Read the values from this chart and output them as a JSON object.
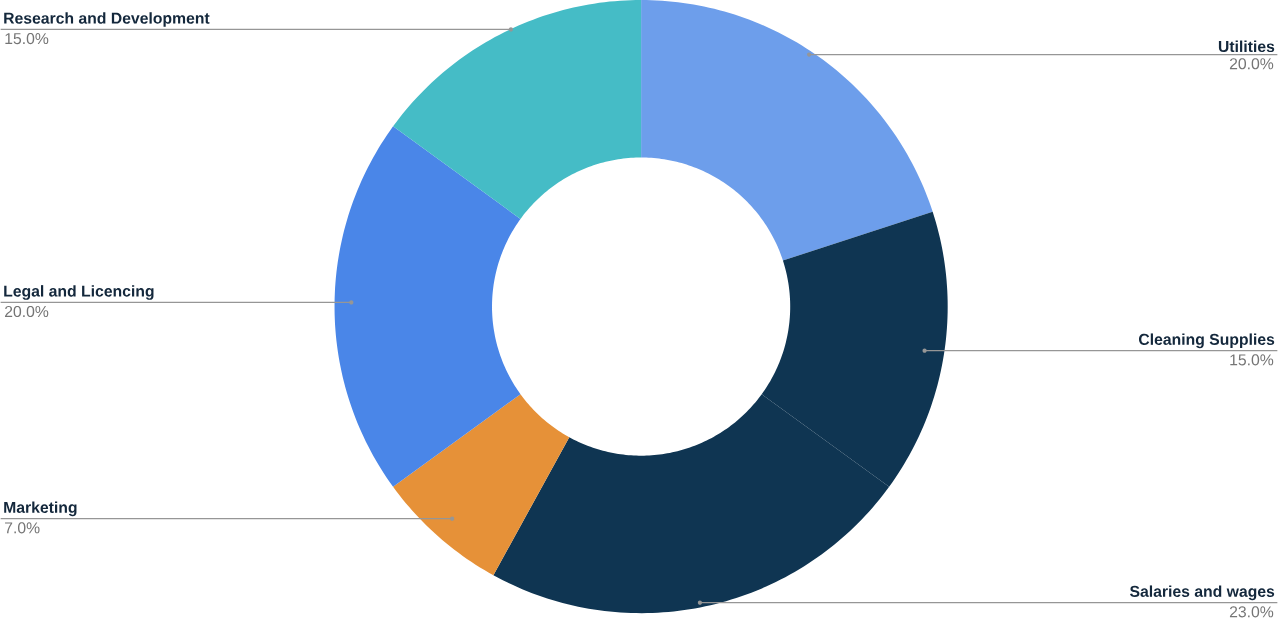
{
  "chart_data": {
    "type": "donut",
    "categories": [
      "Utilities",
      "Cleaning Supplies",
      "Salaries and wages",
      "Marketing",
      "Legal and Licencing",
      "Research and Development"
    ],
    "values": [
      20,
      15,
      23,
      7,
      20,
      15
    ],
    "colors": [
      "#6d9eeb",
      "#0f3552",
      "#0f3552",
      "#e69138",
      "#4a86e8",
      "#45bcc6"
    ],
    "value_labels": [
      "20.0%",
      "15.0%",
      "23.0%",
      "7.0%",
      "20.0%",
      "15.0%"
    ]
  }
}
